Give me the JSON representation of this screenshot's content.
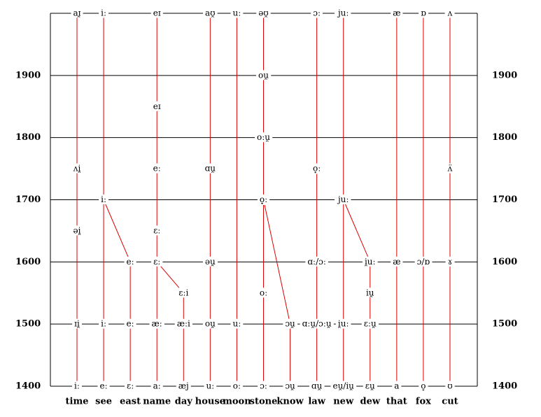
{
  "axis": {
    "ylim": [
      1400,
      2000
    ],
    "yticks": [
      1400,
      1500,
      1600,
      1700,
      1800,
      1900
    ]
  },
  "columns": [
    {
      "word": "time",
      "nodes": [
        {
          "label": "iː",
          "year": 1400
        },
        {
          "label": "ɪi̯",
          "year": 1500
        },
        {
          "label": "əi̯",
          "year": 1650
        },
        {
          "label": "ʌi̯",
          "year": 1750
        },
        {
          "label": "aɪ̯",
          "year": 2000
        }
      ]
    },
    {
      "word": "see",
      "nodes": [
        {
          "label": "eː",
          "year": 1400
        },
        {
          "label": "iː",
          "year": 1500
        },
        {
          "label": "iː",
          "year": 1700
        },
        {
          "label": "iː",
          "year": 2000
        }
      ]
    },
    {
      "word": "east",
      "nodes": [
        {
          "label": "ɛː",
          "year": 1400
        },
        {
          "label": "eː",
          "year": 1500
        },
        {
          "label": "eː",
          "year": 1600
        }
      ]
    },
    {
      "word": "name",
      "nodes": [
        {
          "label": "aː",
          "year": 1400
        },
        {
          "label": "æː",
          "year": 1500
        },
        {
          "label": "ɛː",
          "year": 1600
        },
        {
          "label": "ɛː",
          "year": 1650
        },
        {
          "label": "eː",
          "year": 1750
        },
        {
          "label": "eɪ",
          "year": 1850
        },
        {
          "label": "eɪ",
          "year": 2000
        }
      ]
    },
    {
      "word": "day",
      "nodes": [
        {
          "label": "æj",
          "year": 1400
        },
        {
          "label": "æːi",
          "year": 1500
        },
        {
          "label": "ɛːi",
          "year": 1550
        }
      ]
    },
    {
      "word": "house",
      "nodes": [
        {
          "label": "uː",
          "year": 1400
        },
        {
          "label": "ou̯",
          "year": 1500
        },
        {
          "label": "əu̯",
          "year": 1600
        },
        {
          "label": "ɑu̯",
          "year": 1750
        },
        {
          "label": "aʊ̯",
          "year": 2000
        }
      ]
    },
    {
      "word": "moon",
      "nodes": [
        {
          "label": "oː",
          "year": 1400
        },
        {
          "label": "uː",
          "year": 1500
        },
        {
          "label": "uː",
          "year": 2000
        }
      ]
    },
    {
      "word": "stone",
      "nodes": [
        {
          "label": "ɔː",
          "year": 1400
        },
        {
          "label": "oː",
          "year": 1550
        },
        {
          "label": "o̞ː",
          "year": 1700
        },
        {
          "label": "oːu̯",
          "year": 1800
        },
        {
          "label": "ou̯",
          "year": 1900
        },
        {
          "label": "əʊ̯",
          "year": 2000
        }
      ]
    },
    {
      "word": "know",
      "nodes": [
        {
          "label": "ɔu̯",
          "year": 1400
        },
        {
          "label": "ɔu̯",
          "year": 1500
        }
      ]
    },
    {
      "word": "law",
      "nodes": [
        {
          "label": "ɑu̯",
          "year": 1400
        },
        {
          "label": "ɑːu̯/ɔːu̯",
          "year": 1500
        },
        {
          "label": "ɑː/ɔː",
          "year": 1600
        },
        {
          "label": "o̞ː",
          "year": 1750
        },
        {
          "label": "ɔː",
          "year": 2000
        }
      ]
    },
    {
      "word": "new",
      "nodes": [
        {
          "label": "eu̯/iu̯",
          "year": 1400
        },
        {
          "label": "i̯uː",
          "year": 1500
        },
        {
          "label": "juː",
          "year": 1700
        },
        {
          "label": "juː",
          "year": 2000
        }
      ]
    },
    {
      "word": "dew",
      "nodes": [
        {
          "label": "ɛu̯",
          "year": 1400
        },
        {
          "label": "ɛːu̯",
          "year": 1500
        },
        {
          "label": "iu̯",
          "year": 1550
        },
        {
          "label": "i̯uː",
          "year": 1600
        }
      ]
    },
    {
      "word": "that",
      "nodes": [
        {
          "label": "a",
          "year": 1400
        },
        {
          "label": "æ",
          "year": 1600
        },
        {
          "label": "æ",
          "year": 2000
        }
      ]
    },
    {
      "word": "fox",
      "nodes": [
        {
          "label": "o̞",
          "year": 1400
        },
        {
          "label": "ɔ/ɒ",
          "year": 1600
        },
        {
          "label": "ɒ",
          "year": 2000
        }
      ]
    },
    {
      "word": "cut",
      "nodes": [
        {
          "label": "ʊ",
          "year": 1400
        },
        {
          "label": "ɤ",
          "year": 1600
        },
        {
          "label": "ʌ̈",
          "year": 1750
        },
        {
          "label": "ʌ",
          "year": 2000
        }
      ]
    }
  ],
  "links": [
    {
      "from": [
        1,
        2
      ],
      "to": [
        2,
        2
      ]
    },
    {
      "from": [
        4,
        2
      ],
      "to": [
        3,
        2
      ]
    },
    {
      "from": [
        8,
        1
      ],
      "to": [
        7,
        2
      ]
    },
    {
      "from": [
        11,
        3
      ],
      "to": [
        10,
        2
      ]
    }
  ]
}
